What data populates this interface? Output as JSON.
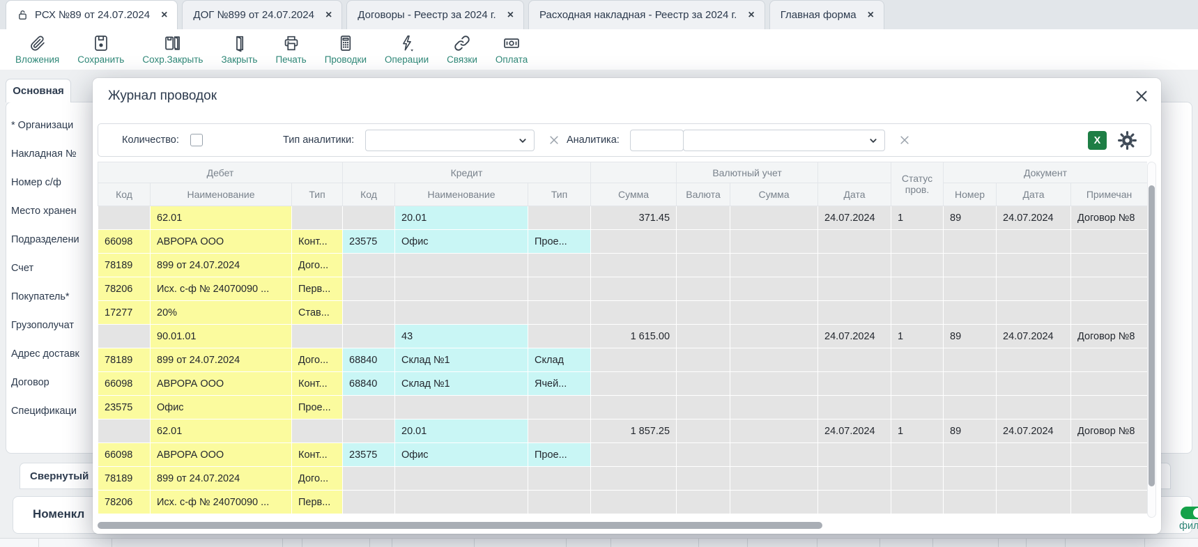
{
  "ui": {
    "close_glyph": "×"
  },
  "colors": {
    "toolbar_label_teal": "#2f8878",
    "debit_highlight_yellow": "#fbfb9e",
    "credit_highlight_cyan": "#c9f6f5",
    "excel_green": "#1e7e45",
    "toggle_green": "#16a34a"
  },
  "tabs": [
    {
      "name": "tab-rsx-89",
      "label": "РСХ №89 от 24.07.2024",
      "icon": "lock-icon",
      "active": true
    },
    {
      "name": "tab-dog-899",
      "label": "ДОГ №899 от 24.07.2024",
      "active": false
    },
    {
      "name": "tab-contracts-registry",
      "label": "Договоры - Реестр за 2024 г.",
      "active": false
    },
    {
      "name": "tab-expense-invoice-registry",
      "label": "Расходная накладная - Реестр за 2024 г.",
      "active": false
    },
    {
      "name": "tab-main-form",
      "label": "Главная форма",
      "active": false
    }
  ],
  "toolbar": [
    {
      "name": "attachments",
      "label": "Вложения",
      "icon": "paperclip-icon"
    },
    {
      "name": "save",
      "label": "Сохранить",
      "icon": "save-icon"
    },
    {
      "name": "save-close",
      "label": "Сохр.Закрыть",
      "icon": "save-close-icon"
    },
    {
      "name": "close",
      "label": "Закрыть",
      "icon": "door-icon"
    },
    {
      "name": "print",
      "label": "Печать",
      "icon": "printer-icon"
    },
    {
      "name": "postings",
      "label": "Проводки",
      "icon": "calculator-icon"
    },
    {
      "name": "operations",
      "label": "Операции",
      "icon": "lightning-icon"
    },
    {
      "name": "links",
      "label": "Связки",
      "icon": "chain-icon"
    },
    {
      "name": "payment",
      "label": "Оплата",
      "icon": "banknote-icon"
    }
  ],
  "sidebar": {
    "active_tab": "Основная",
    "fields": [
      "* Организаци",
      "Накладная №",
      "Номер с/ф",
      "Место хранен",
      "Подразделени",
      "Счет",
      "Покупатель*",
      "Грузополучат",
      "Адрес доставк",
      "Договор",
      "Спецификаци"
    ],
    "collapsed_section": "Свернутый",
    "bottom_section": "Номенкл"
  },
  "background": {
    "filter_toggle_label": "фил"
  },
  "modal": {
    "title": "Журнал проводок",
    "filter": {
      "quantity_label": "Количество:",
      "quantity_checked": false,
      "analytics_type_label": "Тип аналитики:",
      "analytics_type_value": "",
      "analytics_label": "Аналитика:",
      "analytics_code_value": "",
      "analytics_value": "",
      "excel_button_label": "X"
    },
    "table": {
      "groups": [
        {
          "label": "Дебет",
          "colspan": 3
        },
        {
          "label": "Кредит",
          "colspan": 3
        },
        {
          "label": "",
          "colspan": 1
        },
        {
          "label": "Валютный учет",
          "colspan": 2
        },
        {
          "label": "",
          "colspan": 1
        },
        {
          "label": "Статус пров.",
          "colspan": 1,
          "rowspan": 2
        },
        {
          "label": "Документ",
          "colspan": 3
        }
      ],
      "columns": [
        "Код",
        "Наименование",
        "Тип",
        "Код",
        "Наименование",
        "Тип",
        "Сумма",
        "Валюта",
        "Сумма",
        "Дата",
        "Номер",
        "Дата",
        "Примечан"
      ],
      "rows": [
        {
          "kind": "group",
          "cells": [
            "",
            "62.01",
            "",
            "",
            "20.01",
            "",
            "371.45",
            "",
            "",
            "24.07.2024",
            "1",
            "89",
            "24.07.2024",
            "Договор №8"
          ]
        },
        {
          "kind": "detail",
          "cells": [
            "66098",
            "АВРОРА ООО",
            "Конт...",
            "23575",
            "Офис",
            "Прое...",
            "",
            "",
            "",
            "",
            "",
            "",
            "",
            ""
          ]
        },
        {
          "kind": "detail",
          "cells": [
            "78189",
            "899 от 24.07.2024",
            "Дого...",
            "",
            "",
            "",
            "",
            "",
            "",
            "",
            "",
            "",
            "",
            ""
          ]
        },
        {
          "kind": "detail",
          "cells": [
            "78206",
            "Исх. с-ф № 24070090 ...",
            "Перв...",
            "",
            "",
            "",
            "",
            "",
            "",
            "",
            "",
            "",
            "",
            ""
          ]
        },
        {
          "kind": "detail",
          "cells": [
            "17277",
            "20%",
            "Став...",
            "",
            "",
            "",
            "",
            "",
            "",
            "",
            "",
            "",
            "",
            ""
          ]
        },
        {
          "kind": "group",
          "cells": [
            "",
            "90.01.01",
            "",
            "",
            "43",
            "",
            "1 615.00",
            "",
            "",
            "24.07.2024",
            "1",
            "89",
            "24.07.2024",
            "Договор №8"
          ]
        },
        {
          "kind": "detail",
          "cells": [
            "78189",
            "899 от 24.07.2024",
            "Дого...",
            "68840",
            "Склад №1",
            "Склад",
            "",
            "",
            "",
            "",
            "",
            "",
            "",
            ""
          ]
        },
        {
          "kind": "detail",
          "cells": [
            "66098",
            "АВРОРА ООО",
            "Конт...",
            "68840",
            "Склад №1",
            "Ячей...",
            "",
            "",
            "",
            "",
            "",
            "",
            "",
            ""
          ]
        },
        {
          "kind": "detail",
          "cells": [
            "23575",
            "Офис",
            "Прое...",
            "",
            "",
            "",
            "",
            "",
            "",
            "",
            "",
            "",
            "",
            ""
          ]
        },
        {
          "kind": "group",
          "cells": [
            "",
            "62.01",
            "",
            "",
            "20.01",
            "",
            "1 857.25",
            "",
            "",
            "24.07.2024",
            "1",
            "89",
            "24.07.2024",
            "Договор №8"
          ]
        },
        {
          "kind": "detail",
          "cells": [
            "66098",
            "АВРОРА ООО",
            "Конт...",
            "23575",
            "Офис",
            "Прое...",
            "",
            "",
            "",
            "",
            "",
            "",
            "",
            ""
          ]
        },
        {
          "kind": "detail",
          "cells": [
            "78189",
            "899 от 24.07.2024",
            "Дого...",
            "",
            "",
            "",
            "",
            "",
            "",
            "",
            "",
            "",
            "",
            ""
          ]
        },
        {
          "kind": "detail",
          "cells": [
            "78206",
            "Исх. с-ф № 24070090 ...",
            "Перв...",
            "",
            "",
            "",
            "",
            "",
            "",
            "",
            "",
            "",
            "",
            ""
          ]
        }
      ]
    }
  }
}
